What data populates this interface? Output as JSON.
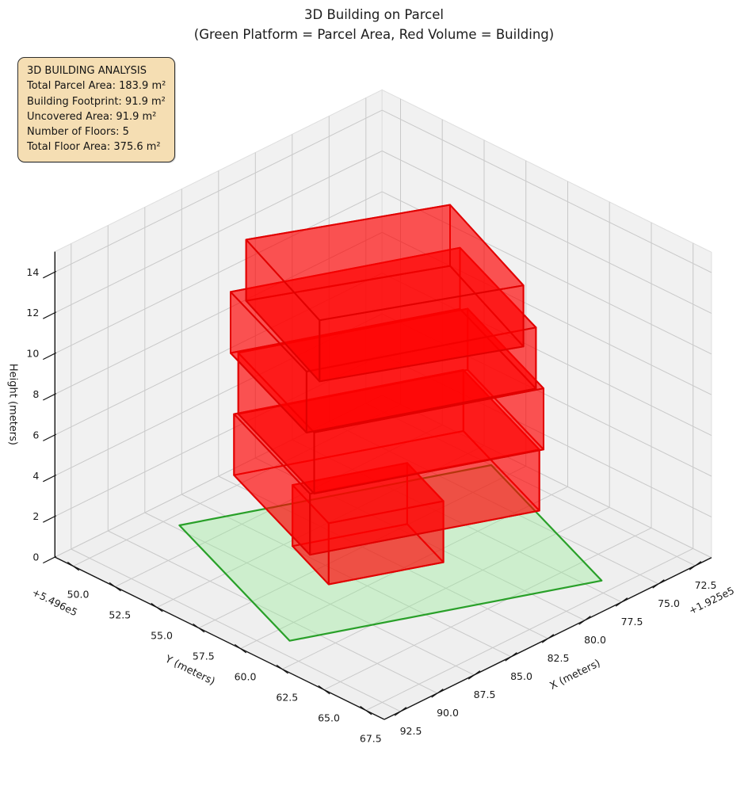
{
  "chart_data": {
    "type": "3d-building-plot",
    "title": "3D Building on Parcel",
    "subtitle": "(Green Platform = Parcel Area, Red Volume = Building)",
    "annotation": {
      "lines": [
        "3D BUILDING ANALYSIS",
        "Total Parcel Area: 183.9 m²",
        "Building Footprint: 91.9 m²",
        "Uncovered Area: 91.9 m²",
        "Number of Floors: 5",
        "Total Floor Area: 375.6 m²"
      ],
      "background": "#f5deb3",
      "border_color": "#2e2e2e"
    },
    "axes": {
      "x": {
        "label": "X (meters)",
        "offset_text": "+1.925e5",
        "lim": [
          71.4,
          93.6
        ],
        "ticks": [
          72.5,
          75.0,
          77.5,
          80.0,
          82.5,
          85.0,
          87.5,
          90.0,
          92.5
        ]
      },
      "y": {
        "label": "Y (meters)",
        "offset_text": "+5.496e5",
        "lim": [
          48.9,
          68.6
        ],
        "ticks": [
          50.0,
          52.5,
          55.0,
          57.5,
          60.0,
          62.5,
          65.0,
          67.5
        ]
      },
      "z": {
        "label": "Height (meters)",
        "lim": [
          0,
          15
        ],
        "ticks": [
          0,
          2,
          4,
          6,
          8,
          10,
          12,
          14
        ]
      }
    },
    "parcel": {
      "label": "Parcel Area",
      "area_m2": 183.9,
      "polygon_xy": [
        [
          87.2,
          50.7
        ],
        [
          91.4,
          61.0
        ],
        [
          76.7,
          66.7
        ],
        [
          72.5,
          56.4
        ]
      ],
      "fill": "#90ee90",
      "fill_opacity": 0.35,
      "edge": "#1f9b1f"
    },
    "building": {
      "label": "Building",
      "num_floors": 5,
      "floor_height_m": 3,
      "footprint_m2": 91.9,
      "fill": "#ff0000",
      "fill_opacity": 0.42,
      "edge": "#e00000",
      "floors": [
        {
          "z0": 0,
          "z1": 3,
          "footprint_xy": [
            [
              84.8,
              55.35
            ],
            [
              86.2,
              58.75
            ],
            [
              80.8,
              60.85
            ],
            [
              79.4,
              57.45
            ]
          ]
        },
        {
          "z0": 3,
          "z1": 6,
          "footprint_xy": [
            [
              86.1,
              53.0
            ],
            [
              89.0,
              60.1
            ],
            [
              78.2,
              64.3
            ],
            [
              75.3,
              57.2
            ]
          ]
        },
        {
          "z0": 6,
          "z1": 9,
          "footprint_xy": [
            [
              85.95,
              53.12
            ],
            [
              88.85,
              60.22
            ],
            [
              78.05,
              64.42
            ],
            [
              75.15,
              57.32
            ]
          ]
        },
        {
          "z0": 9,
          "z1": 12,
          "footprint_xy": [
            [
              86.22,
              52.9
            ],
            [
              89.12,
              60.0
            ],
            [
              78.32,
              64.2
            ],
            [
              75.42,
              57.1
            ]
          ]
        },
        {
          "z0": 12,
          "z1": 15,
          "footprint_xy": [
            [
              86.3,
              53.9
            ],
            [
              89.35,
              60.98
            ],
            [
              80.05,
              64.98
            ],
            [
              77.0,
              57.9
            ]
          ]
        }
      ]
    },
    "style": {
      "pane_fill": "#f1f1f1",
      "floor_pane_fill": "#efefef",
      "grid_color": "#c9c9c9",
      "axis_line_color": "#141414"
    }
  }
}
